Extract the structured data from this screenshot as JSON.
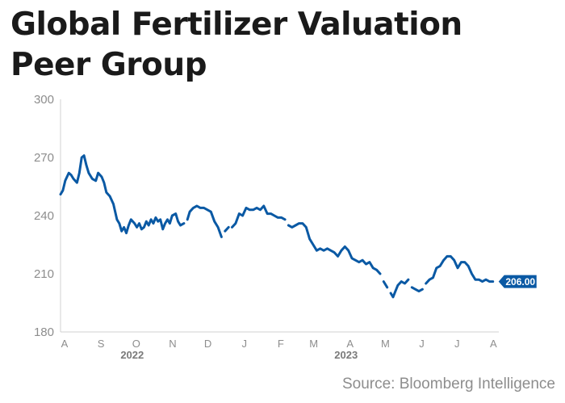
{
  "title": {
    "line1": "Global Fertilizer Valuation",
    "line2": "Peer Group"
  },
  "source": "Source: Bloomberg Intelligence",
  "colors": {
    "line": "#0a59a4",
    "label_bg": "#0a59a4",
    "axis_text": "#8d8d8d",
    "year_text": "#7a7a7a",
    "axis_line": "#d0d0d0",
    "title": "#1a1a1a"
  },
  "chart_data": {
    "type": "line",
    "title": "Global Fertilizer Valuation Peer Group",
    "xlabel": "",
    "ylabel": "",
    "ylim": [
      180,
      300
    ],
    "yticks": [
      180,
      210,
      240,
      270,
      300
    ],
    "grid": false,
    "x_domain": [
      "2022-08-01",
      "2023-08-09"
    ],
    "month_ticks": [
      {
        "label": "A",
        "date": "2022-08-01"
      },
      {
        "label": "S",
        "date": "2022-09-01"
      },
      {
        "label": "O",
        "date": "2022-10-01"
      },
      {
        "label": "N",
        "date": "2022-11-01"
      },
      {
        "label": "D",
        "date": "2022-12-01"
      },
      {
        "label": "J",
        "date": "2023-01-01"
      },
      {
        "label": "F",
        "date": "2023-02-01"
      },
      {
        "label": "M",
        "date": "2023-03-01"
      },
      {
        "label": "A",
        "date": "2023-04-01"
      },
      {
        "label": "M",
        "date": "2023-05-01"
      },
      {
        "label": "J",
        "date": "2023-06-01"
      },
      {
        "label": "J",
        "date": "2023-07-01"
      },
      {
        "label": "A",
        "date": "2023-08-01"
      }
    ],
    "year_labels": [
      {
        "label": "2022",
        "date": "2022-10-01"
      },
      {
        "label": "2023",
        "date": "2023-04-01"
      }
    ],
    "last_value_label": "206.00",
    "series": [
      {
        "segments": [
          [
            [
              "2022-08-01",
              251
            ],
            [
              "2022-08-03",
              253
            ],
            [
              "2022-08-05",
              258
            ],
            [
              "2022-08-08",
              262
            ],
            [
              "2022-08-10",
              261
            ],
            [
              "2022-08-12",
              259
            ],
            [
              "2022-08-15",
              257
            ],
            [
              "2022-08-17",
              262
            ],
            [
              "2022-08-19",
              270
            ],
            [
              "2022-08-21",
              271
            ],
            [
              "2022-08-23",
              266
            ],
            [
              "2022-08-25",
              262
            ],
            [
              "2022-08-28",
              259
            ],
            [
              "2022-08-31",
              258
            ],
            [
              "2022-09-02",
              262
            ],
            [
              "2022-09-05",
              260
            ],
            [
              "2022-09-07",
              257
            ],
            [
              "2022-09-09",
              252
            ],
            [
              "2022-09-12",
              250
            ],
            [
              "2022-09-15",
              246
            ],
            [
              "2022-09-18",
              238
            ],
            [
              "2022-09-20",
              236
            ],
            [
              "2022-09-22",
              232
            ],
            [
              "2022-09-24",
              234
            ],
            [
              "2022-09-26",
              231
            ],
            [
              "2022-09-28",
              235
            ],
            [
              "2022-09-30",
              238
            ],
            [
              "2022-10-03",
              236
            ],
            [
              "2022-10-05",
              234
            ],
            [
              "2022-10-07",
              236
            ],
            [
              "2022-10-09",
              233
            ],
            [
              "2022-10-11",
              234
            ],
            [
              "2022-10-13",
              237
            ],
            [
              "2022-10-15",
              235
            ],
            [
              "2022-10-17",
              238
            ],
            [
              "2022-10-19",
              236
            ],
            [
              "2022-10-21",
              239
            ],
            [
              "2022-10-23",
              237
            ],
            [
              "2022-10-25",
              238
            ],
            [
              "2022-10-27",
              233
            ],
            [
              "2022-10-29",
              236
            ],
            [
              "2022-10-31",
              238
            ],
            [
              "2022-11-02",
              236
            ],
            [
              "2022-11-04",
              240
            ],
            [
              "2022-11-07",
              241
            ],
            [
              "2022-11-09",
              237
            ],
            [
              "2022-11-11",
              235
            ],
            [
              "2022-11-14",
              236
            ]
          ],
          [
            [
              "2022-11-17",
              238
            ],
            [
              "2022-11-19",
              242
            ],
            [
              "2022-11-22",
              244
            ],
            [
              "2022-11-25",
              245
            ],
            [
              "2022-11-28",
              244
            ],
            [
              "2022-12-01",
              244
            ],
            [
              "2022-12-04",
              243
            ],
            [
              "2022-12-07",
              242
            ],
            [
              "2022-12-10",
              237
            ],
            [
              "2022-12-13",
              234
            ],
            [
              "2022-12-16",
              229
            ]
          ],
          [
            [
              "2022-12-19",
              232
            ],
            [
              "2022-12-22",
              234
            ]
          ],
          [
            [
              "2022-12-25",
              234
            ],
            [
              "2022-12-28",
              236
            ],
            [
              "2022-12-31",
              241
            ],
            [
              "2023-01-03",
              240
            ],
            [
              "2023-01-06",
              244
            ],
            [
              "2023-01-09",
              243
            ],
            [
              "2023-01-12",
              243
            ],
            [
              "2023-01-15",
              244
            ],
            [
              "2023-01-18",
              243
            ],
            [
              "2023-01-21",
              245
            ],
            [
              "2023-01-24",
              241
            ],
            [
              "2023-01-27",
              241
            ],
            [
              "2023-01-30",
              240
            ],
            [
              "2023-02-02",
              239
            ],
            [
              "2023-02-05",
              239
            ],
            [
              "2023-02-08",
              238
            ]
          ],
          [
            [
              "2023-02-11",
              235
            ],
            [
              "2023-02-14",
              234
            ],
            [
              "2023-02-17",
              235
            ],
            [
              "2023-02-20",
              236
            ],
            [
              "2023-02-23",
              236
            ],
            [
              "2023-02-26",
              234
            ],
            [
              "2023-03-01",
              228
            ],
            [
              "2023-03-04",
              225
            ],
            [
              "2023-03-07",
              222
            ],
            [
              "2023-03-10",
              223
            ],
            [
              "2023-03-13",
              222
            ],
            [
              "2023-03-16",
              223
            ],
            [
              "2023-03-19",
              222
            ],
            [
              "2023-03-22",
              221
            ],
            [
              "2023-03-25",
              219
            ],
            [
              "2023-03-28",
              222
            ],
            [
              "2023-03-31",
              224
            ],
            [
              "2023-04-03",
              222
            ],
            [
              "2023-04-06",
              218
            ],
            [
              "2023-04-09",
              217
            ],
            [
              "2023-04-12",
              216
            ],
            [
              "2023-04-15",
              217
            ],
            [
              "2023-04-18",
              215
            ],
            [
              "2023-04-21",
              216
            ],
            [
              "2023-04-24",
              213
            ],
            [
              "2023-04-27",
              212
            ],
            [
              "2023-04-30",
              210
            ]
          ],
          [
            [
              "2023-05-03",
              206
            ],
            [
              "2023-05-06",
              203
            ]
          ],
          [
            [
              "2023-05-09",
              200
            ],
            [
              "2023-05-11",
              198
            ],
            [
              "2023-05-13",
              201
            ],
            [
              "2023-05-15",
              204
            ],
            [
              "2023-05-18",
              206
            ],
            [
              "2023-05-21",
              205
            ],
            [
              "2023-05-24",
              207
            ]
          ],
          [
            [
              "2023-05-27",
              203
            ],
            [
              "2023-05-30",
              202
            ],
            [
              "2023-06-02",
              201
            ],
            [
              "2023-06-05",
              202
            ]
          ],
          [
            [
              "2023-06-08",
              205
            ],
            [
              "2023-06-11",
              207
            ],
            [
              "2023-06-14",
              208
            ],
            [
              "2023-06-17",
              213
            ],
            [
              "2023-06-20",
              214
            ],
            [
              "2023-06-23",
              217
            ],
            [
              "2023-06-26",
              219
            ],
            [
              "2023-06-29",
              219
            ],
            [
              "2023-07-02",
              217
            ],
            [
              "2023-07-05",
              213
            ],
            [
              "2023-07-08",
              216
            ],
            [
              "2023-07-11",
              216
            ],
            [
              "2023-07-14",
              214
            ],
            [
              "2023-07-17",
              210
            ],
            [
              "2023-07-20",
              207
            ],
            [
              "2023-07-23",
              207
            ],
            [
              "2023-07-26",
              206
            ],
            [
              "2023-07-29",
              207
            ],
            [
              "2023-08-01",
              206
            ],
            [
              "2023-08-04",
              206
            ]
          ]
        ]
      }
    ]
  }
}
